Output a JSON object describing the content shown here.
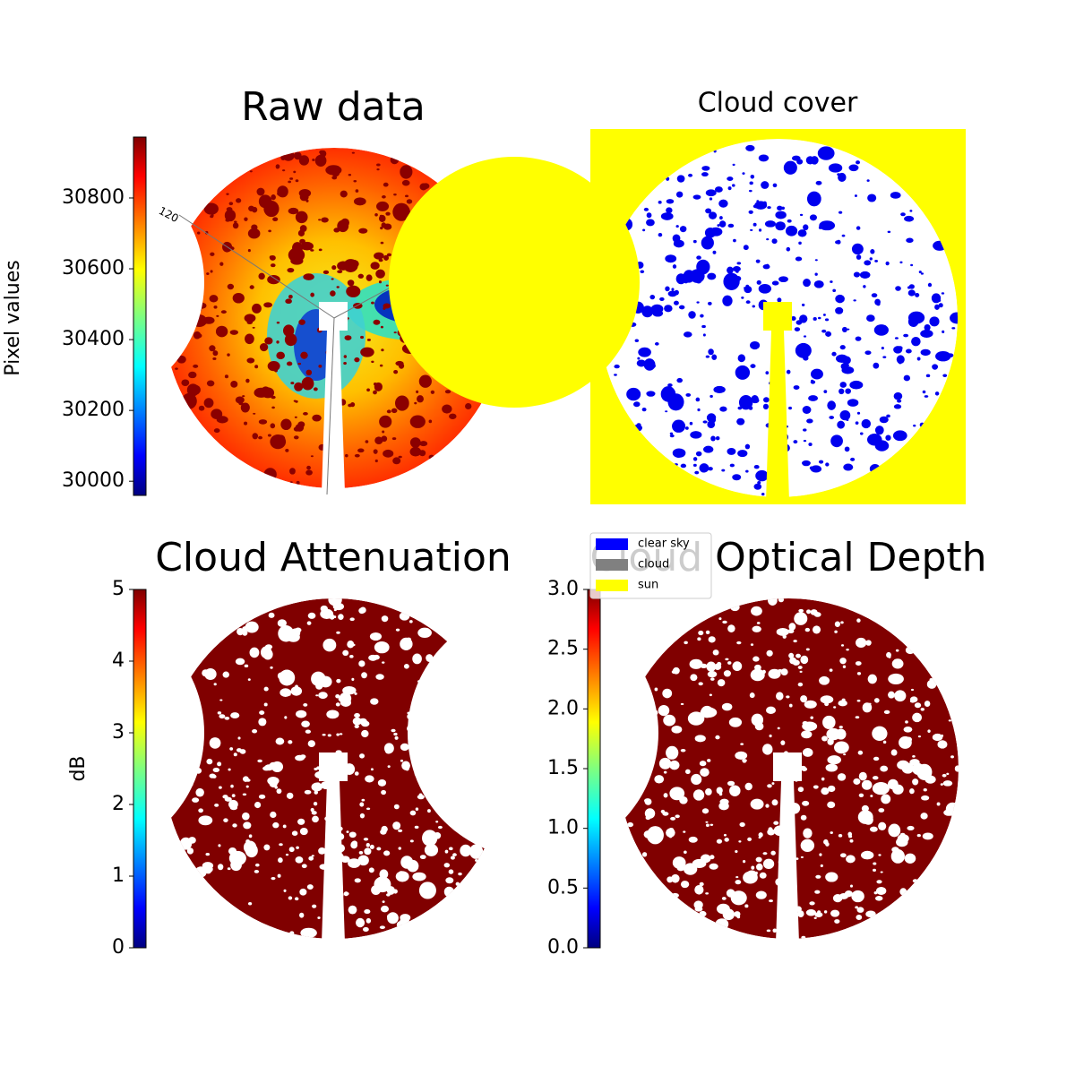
{
  "chart_data": [
    {
      "type": "image",
      "title": "Raw data",
      "annotations": [
        "120"
      ],
      "colorbar": {
        "label": "Pixel values",
        "lim": [
          29960,
          30972
        ],
        "ticks": [
          30000,
          30200,
          30400,
          30600,
          30800
        ],
        "colormap": "jet"
      }
    },
    {
      "type": "image",
      "title": "Cloud cover",
      "background": "#ffff00",
      "legend": {
        "entries": [
          {
            "name": "clear sky",
            "color": "#0000ff"
          },
          {
            "name": "cloud",
            "color": "#808080"
          },
          {
            "name": "sun",
            "color": "#ffff00"
          }
        ]
      }
    },
    {
      "type": "image",
      "title": "Cloud Attenuation",
      "colorbar": {
        "label": "dB",
        "lim": [
          0,
          5
        ],
        "ticks": [
          0,
          1,
          2,
          3,
          4,
          5
        ],
        "colormap": "jet"
      }
    },
    {
      "type": "image",
      "title": "Cloud Optical Depth",
      "colorbar": {
        "lim": [
          0,
          3
        ],
        "ticks": [
          {
            "value": 0,
            "label": "0.0"
          },
          {
            "value": 0.5,
            "label": "0.5"
          },
          {
            "value": 1,
            "label": "1.0"
          },
          {
            "value": 1.5,
            "label": "1.5"
          },
          {
            "value": 2,
            "label": "2.0"
          },
          {
            "value": 2.5,
            "label": "2.5"
          },
          {
            "value": 3,
            "label": "3.0"
          }
        ],
        "colormap": "jet"
      }
    }
  ]
}
